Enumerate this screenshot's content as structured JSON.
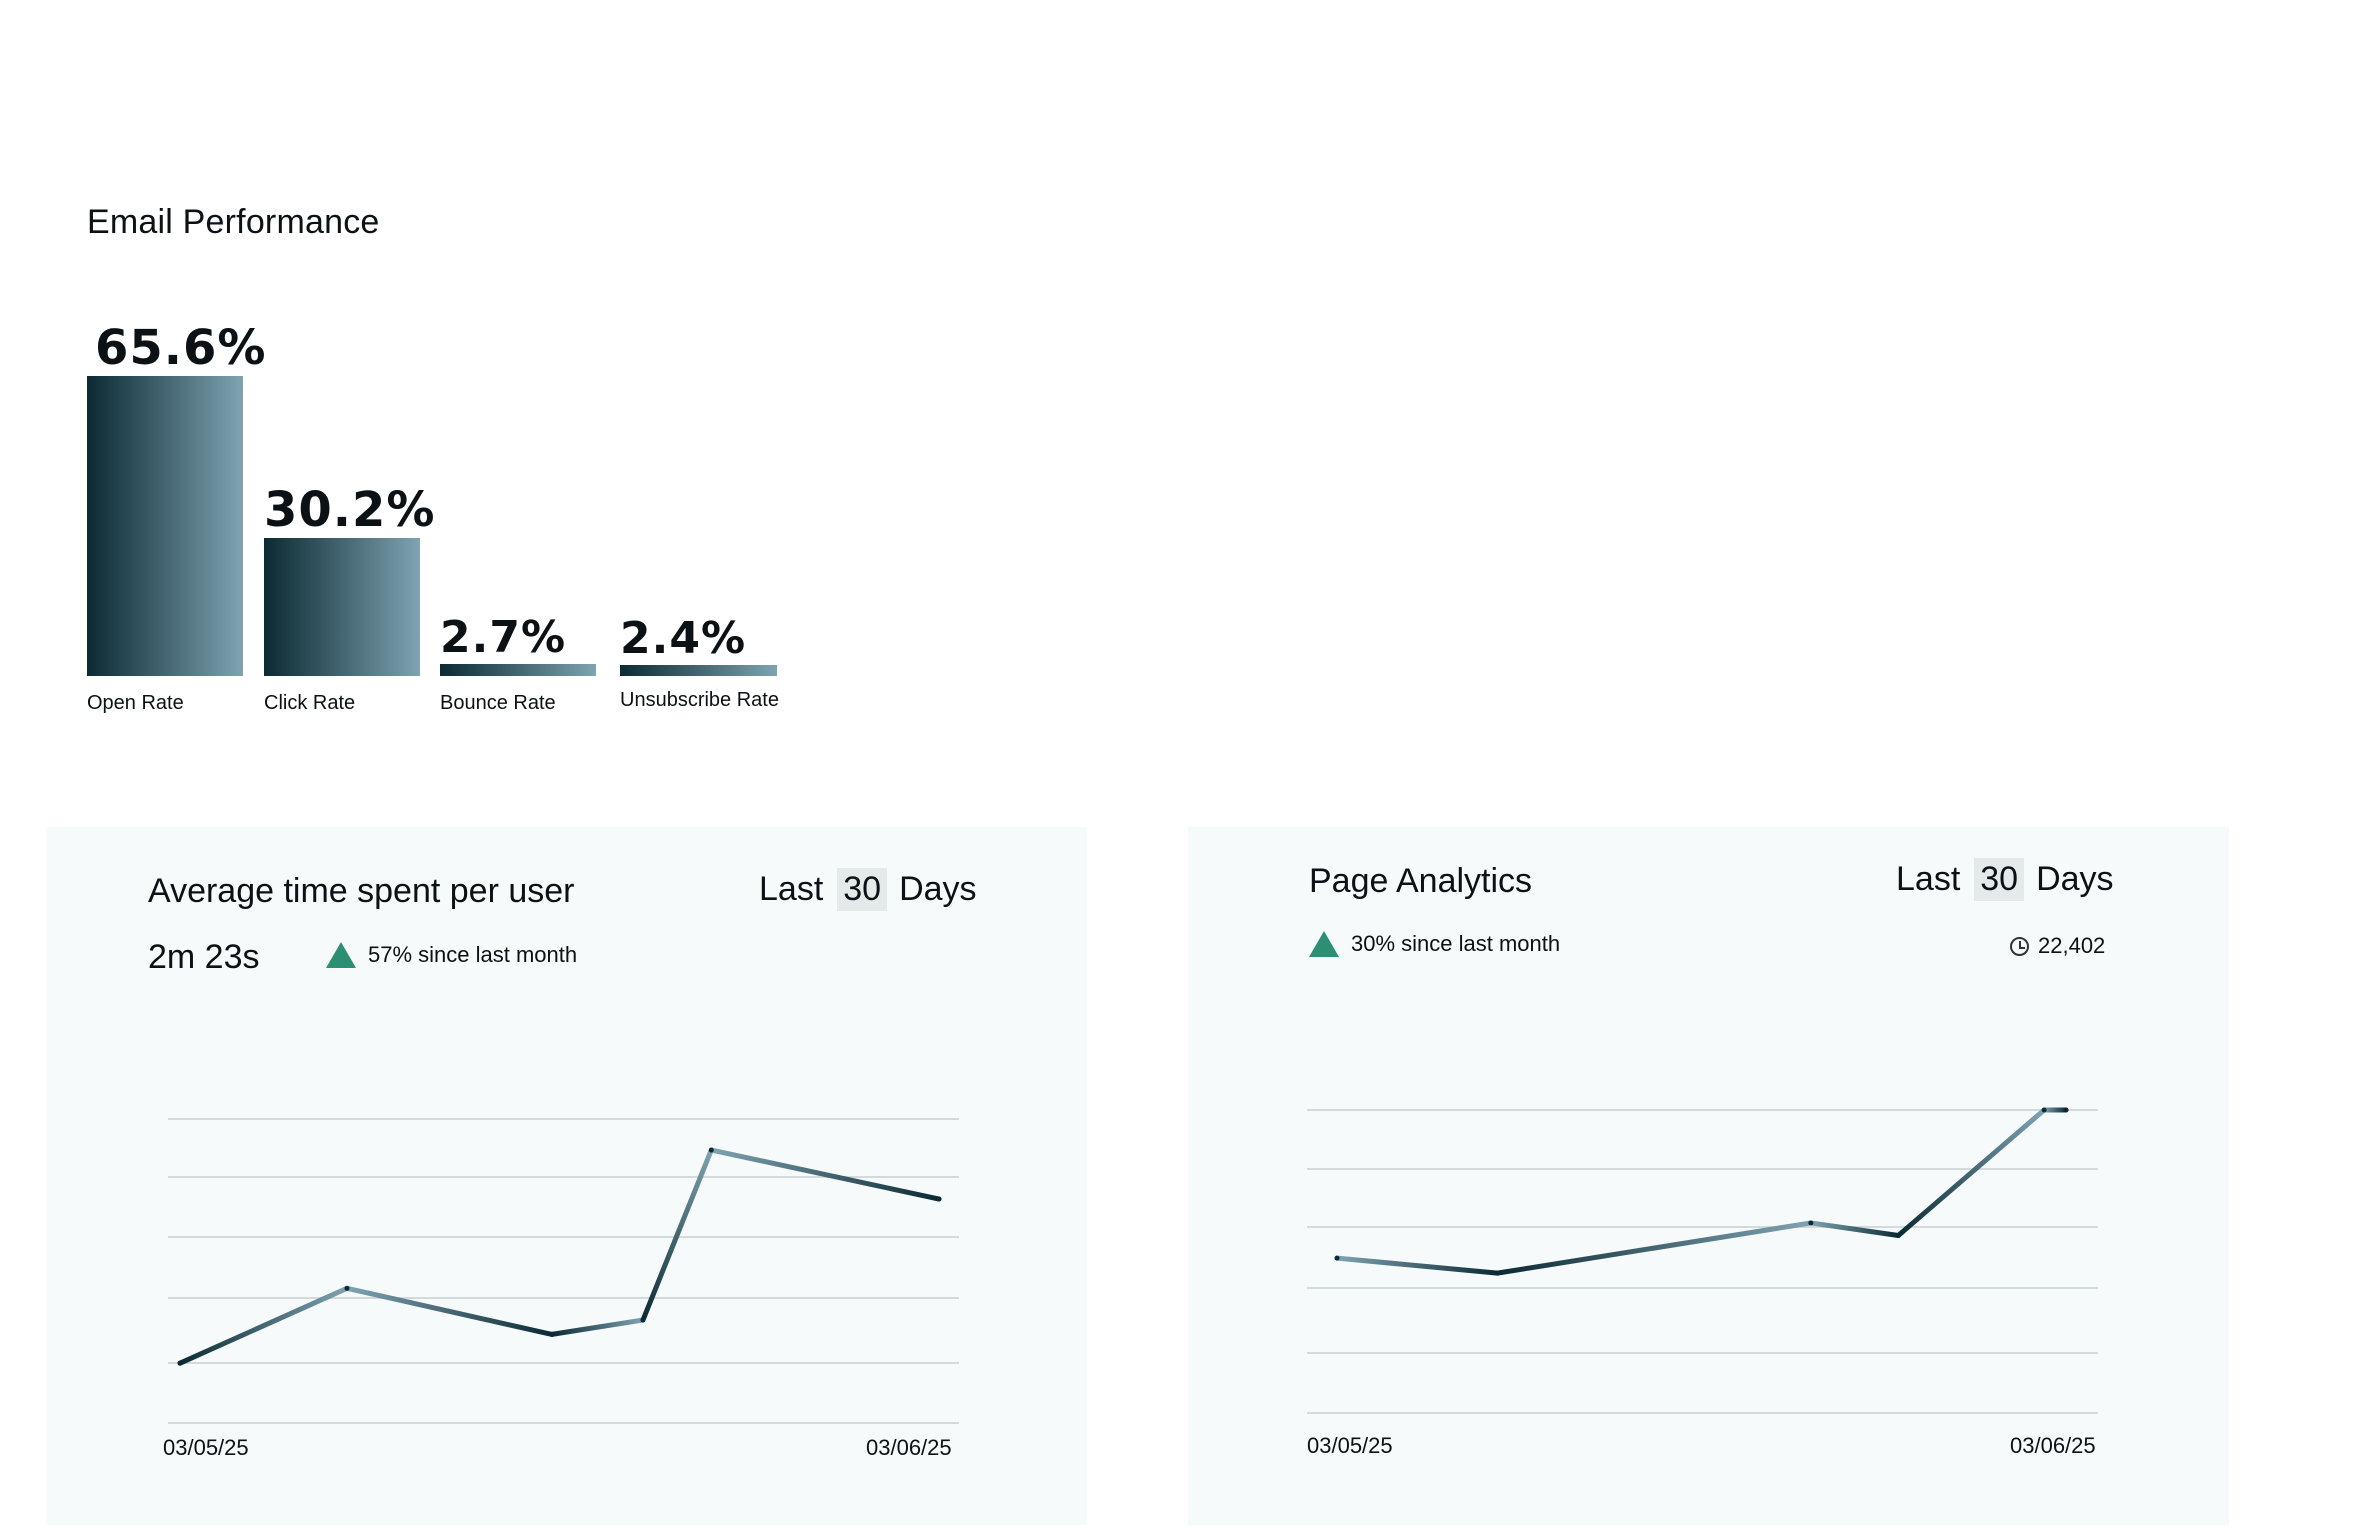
{
  "email_performance": {
    "title": "Email Performance",
    "metrics": [
      {
        "label": "Open Rate",
        "value_text": "65.6%",
        "value": 65.6
      },
      {
        "label": "Click Rate",
        "value_text": "30.2%",
        "value": 30.2
      },
      {
        "label": "Bounce Rate",
        "value_text": "2.7%",
        "value": 2.7
      },
      {
        "label": "Unsubscribe Rate",
        "value_text": "2.4%",
        "value": 2.4
      }
    ]
  },
  "avg_time_card": {
    "title": "Average time spent per user",
    "range_prefix": "Last",
    "range_value": "30",
    "range_suffix": "Days",
    "metric": "2m 23s",
    "delta_text": "57% since last month",
    "x_start": "03/05/25",
    "x_end": "03/06/25"
  },
  "page_analytics_card": {
    "title": "Page Analytics",
    "range_prefix": "Last",
    "range_value": "30",
    "range_suffix": "Days",
    "delta_text": "30% since last month",
    "views": "22,402",
    "x_start": "03/05/25",
    "x_end": "03/06/25"
  },
  "colors": {
    "delta_up": "#2c8f74",
    "line_dark": "#0b2a33",
    "line_light": "#7fa3b1",
    "card_bg": "#f6fafb",
    "grid": "#d3dadc"
  },
  "chart_data": [
    {
      "type": "bar",
      "title": "Email Performance",
      "categories": [
        "Open Rate",
        "Click Rate",
        "Bounce Rate",
        "Unsubscribe Rate"
      ],
      "values": [
        65.6,
        30.2,
        2.7,
        2.4
      ],
      "data_labels": [
        "65.6%",
        "30.2%",
        "2.7%",
        "2.4%"
      ]
    },
    {
      "type": "line",
      "title": "Average time spent per user",
      "x_tick_labels": [
        "03/05/25",
        "03/06/25"
      ],
      "x": [
        0,
        0.22,
        0.49,
        0.61,
        0.7,
        1.0
      ],
      "values": [
        0.1,
        0.36,
        0.2,
        0.25,
        0.84,
        0.67
      ],
      "ylim": [
        0,
        1
      ],
      "grid": true
    },
    {
      "type": "line",
      "title": "Page Analytics",
      "x_tick_labels": [
        "03/05/25",
        "03/06/25"
      ],
      "x": [
        0,
        0.22,
        0.65,
        0.77,
        0.97,
        1.0
      ],
      "values": [
        0.41,
        0.35,
        0.55,
        0.5,
        1.0,
        1.0
      ],
      "ylim": [
        0,
        1
      ],
      "grid": true
    }
  ]
}
